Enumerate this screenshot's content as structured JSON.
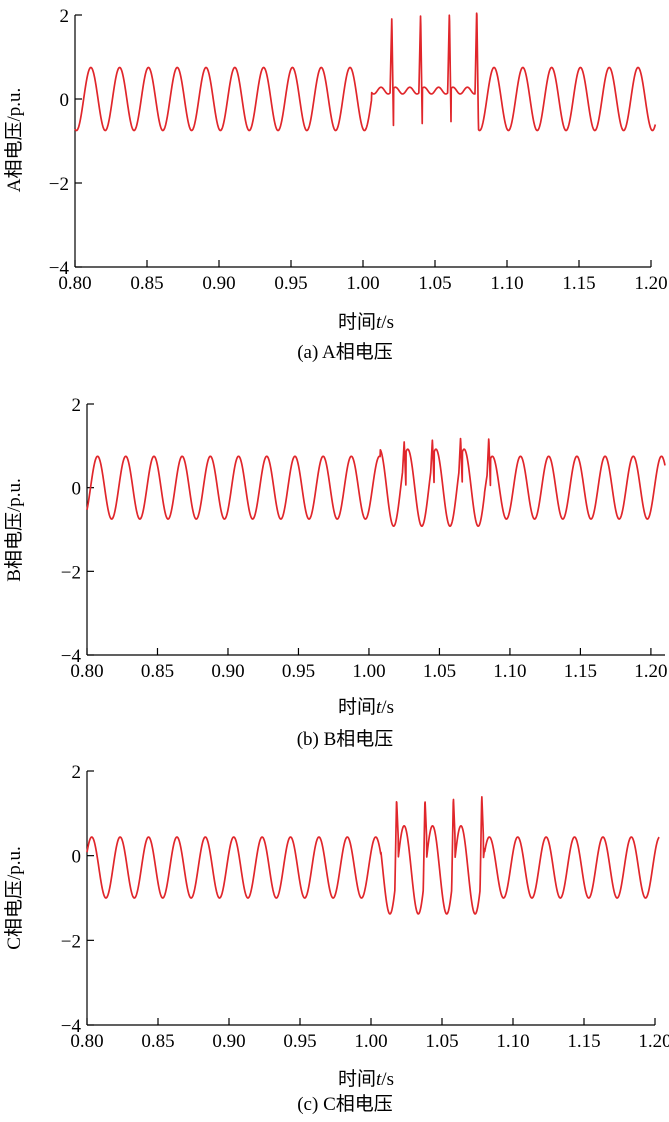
{
  "chart_data": [
    {
      "type": "line",
      "caption": "(a) A相电压",
      "ylabel": "A相电压/p.u.",
      "xlabel_prefix": "时间",
      "xlabel_var": "t",
      "xlabel_suffix": "/s",
      "xlim": [
        0.8,
        1.2
      ],
      "ylim": [
        -4,
        2
      ],
      "xticks": [
        0.8,
        0.85,
        0.9,
        0.95,
        1.0,
        1.05,
        1.1,
        1.15,
        1.2
      ],
      "xtick_labels": [
        "0.80",
        "0.85",
        "0.90",
        "0.95",
        "1.00",
        "1.05",
        "1.10",
        "1.15",
        "1.20"
      ],
      "yticks": [
        2,
        0,
        -2,
        -4
      ],
      "ytick_labels": [
        "2",
        "0",
        "−2",
        "−4"
      ],
      "color": "#e0262b",
      "series": [
        {
          "phase_deg": 252,
          "amplitude": 0.75,
          "fault_window": [
            1.006,
            1.08
          ],
          "fault_level": 0.2,
          "fault_ripple": 0.08,
          "spikes": [
            {
              "t": 1.02,
              "peak": 1.95,
              "dip": -0.75
            },
            {
              "t": 1.04,
              "peak": 2.05,
              "dip": -0.75
            },
            {
              "t": 1.06,
              "peak": 2.1,
              "dip": -0.75
            },
            {
              "t": 1.079,
              "peak": 2.2,
              "dip": -0.75
            }
          ],
          "x_start": 0.8,
          "x_end": 1.203
        }
      ]
    },
    {
      "type": "line",
      "caption": "(b) B相电压",
      "ylabel": "B相电压/p.u.",
      "xlabel_prefix": "时间",
      "xlabel_var": "t",
      "xlabel_suffix": "/s",
      "xlim": [
        0.8,
        1.21
      ],
      "ylim": [
        -4,
        2
      ],
      "xticks": [
        0.8,
        0.85,
        0.9,
        0.95,
        1.0,
        1.05,
        1.1,
        1.15,
        1.2
      ],
      "xtick_labels": [
        "0.80",
        "0.85",
        "0.90",
        "0.95",
        "1.00",
        "1.05",
        "1.10",
        "1.15",
        "1.20"
      ],
      "yticks": [
        2,
        0,
        -2,
        -4
      ],
      "ytick_labels": [
        "2",
        "0",
        "−2",
        "−4"
      ],
      "color": "#e0262b",
      "series": [
        {
          "phase_deg": 315,
          "amplitude": 0.75,
          "fault_window": [
            1.008,
            1.082
          ],
          "fault_amplitude": 1.15,
          "spikes": [
            {
              "t": 1.025,
              "peak": 1.1,
              "dip": 0.05
            },
            {
              "t": 1.045,
              "peak": 1.15,
              "dip": 0.1
            },
            {
              "t": 1.065,
              "peak": 1.2,
              "dip": 0.1
            },
            {
              "t": 1.085,
              "peak": 1.2,
              "dip": 0.0
            }
          ],
          "x_start": 0.8,
          "x_end": 1.21
        }
      ]
    },
    {
      "type": "line",
      "caption": "(c) C相电压",
      "ylabel": "C相电压/p.u.",
      "xlabel_prefix": "时间",
      "xlabel_var": "t",
      "xlabel_suffix": "/s",
      "xlim": [
        0.8,
        1.2
      ],
      "ylim": [
        -4,
        2
      ],
      "xticks": [
        0.8,
        0.85,
        0.9,
        0.95,
        1.0,
        1.05,
        1.1,
        1.15,
        1.2
      ],
      "xtick_labels": [
        "0.80",
        "0.85",
        "0.90",
        "0.95",
        "1.00",
        "1.05",
        "1.10",
        "1.15",
        "1.20"
      ],
      "yticks": [
        2,
        0,
        -2,
        -4
      ],
      "ytick_labels": [
        "2",
        "0",
        "−2",
        "−4"
      ],
      "color": "#e0262b",
      "series": [
        {
          "phase_deg": 30,
          "amplitude": 0.72,
          "offset": -0.28,
          "fault_window": [
            1.007,
            1.08
          ],
          "fault_amplitude": 1.3,
          "spikes": [
            {
              "t": 1.018,
              "peak": 1.35,
              "dip": 0.4
            },
            {
              "t": 1.038,
              "peak": 1.35,
              "dip": 0.4
            },
            {
              "t": 1.058,
              "peak": 1.4,
              "dip": 0.4
            },
            {
              "t": 1.078,
              "peak": 1.45,
              "dip": 0.4
            }
          ],
          "x_start": 0.8,
          "x_end": 1.203
        }
      ]
    }
  ]
}
